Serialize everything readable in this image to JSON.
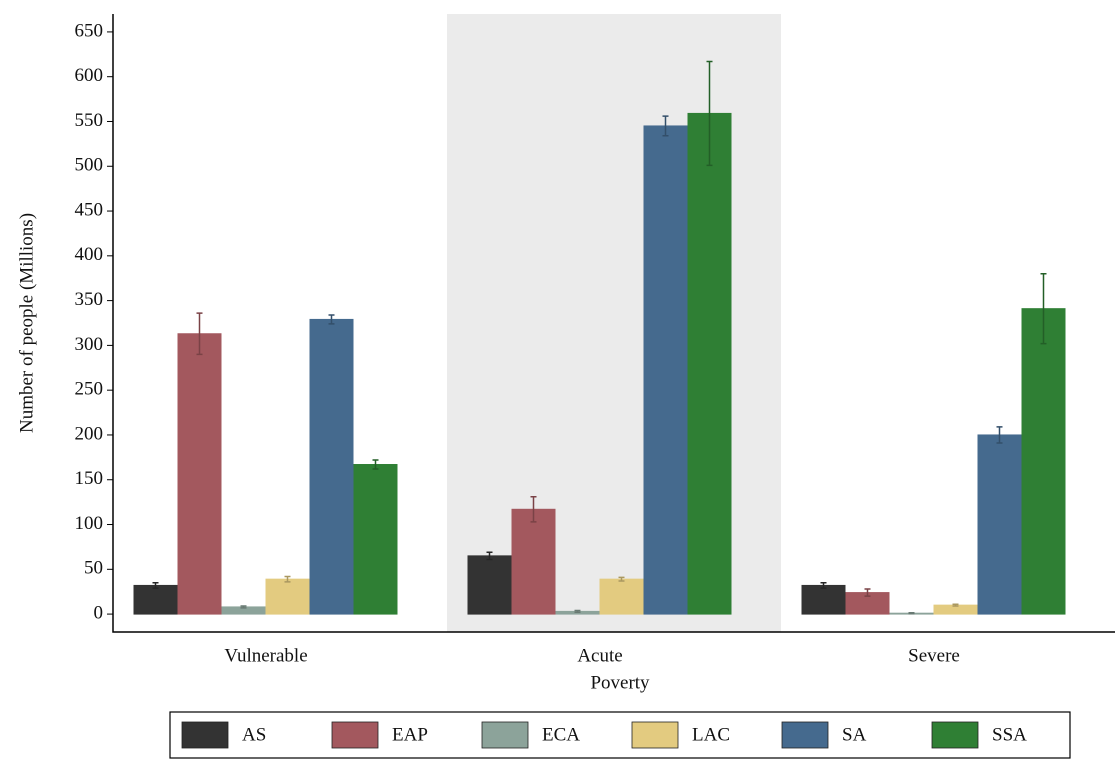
{
  "chart_data": {
    "type": "bar",
    "ylabel": "Number of people (Millions)",
    "xlabel": "Poverty",
    "categories": [
      "Vulnerable",
      "Acute",
      "Severe"
    ],
    "series": [
      {
        "name": "AS",
        "color": "#333333",
        "values": [
          32,
          65,
          32
        ],
        "errors": [
          3,
          4,
          3
        ]
      },
      {
        "name": "EAP",
        "color": "#a3585e",
        "values": [
          313,
          117,
          24
        ],
        "errors": [
          23,
          14,
          4
        ]
      },
      {
        "name": "ECA",
        "color": "#8ca39a",
        "values": [
          8,
          3,
          1
        ],
        "errors": [
          1,
          1,
          0.5
        ]
      },
      {
        "name": "LAC",
        "color": "#e3cb80",
        "values": [
          39,
          39,
          10
        ],
        "errors": [
          3,
          2,
          1
        ]
      },
      {
        "name": "SA",
        "color": "#456a8e",
        "values": [
          329,
          545,
          200
        ],
        "errors": [
          5,
          11,
          9
        ]
      },
      {
        "name": "SSA",
        "color": "#2f7f34",
        "values": [
          167,
          559,
          341
        ],
        "errors": [
          5,
          58,
          39
        ]
      }
    ],
    "ylim": [
      -20,
      670
    ],
    "yticks": [
      0,
      50,
      100,
      150,
      200,
      250,
      300,
      350,
      400,
      450,
      500,
      550,
      600,
      650
    ],
    "shaded_category": 1,
    "legend": "bottom"
  }
}
